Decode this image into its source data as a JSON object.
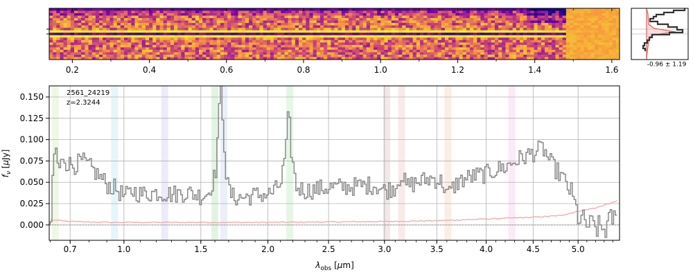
{
  "chart_data": [
    {
      "type": "heatmap",
      "name": "2d-spectrum",
      "xlabel": "",
      "ylabel": "",
      "colormap": "plasma",
      "xlim": [
        0.14,
        1.62
      ],
      "xticks_major": [
        0.2,
        0.4,
        0.6,
        0.8,
        1.0,
        1.2,
        1.4,
        1.6
      ],
      "xtick_labels": [
        "0.2",
        "0.4",
        "0.6",
        "0.8",
        "1.0",
        "1.2",
        "1.4",
        "1.6"
      ],
      "xticks_minor": [
        0.3,
        0.5,
        0.7,
        0.9,
        1.1,
        1.3,
        1.5
      ],
      "rows": 21,
      "trace_row": 10,
      "dark_region_end": 1.48
    },
    {
      "type": "line",
      "name": "spatial-profile",
      "annotation": "-0.96 ± 1.19",
      "series": [
        {
          "name": "data",
          "color": "#333333"
        },
        {
          "name": "model",
          "color": "#e06060"
        }
      ]
    },
    {
      "type": "line",
      "name": "1d-spectrum",
      "title": "",
      "label_id": "2561_24219",
      "label_z": "z=2.3244",
      "xlabel": "λobs [μm]",
      "ylabel": "fν [μJy]",
      "ylim": [
        -0.018,
        0.163
      ],
      "yticks": [
        0.0,
        0.025,
        0.05,
        0.075,
        0.1,
        0.125,
        0.15
      ],
      "ytick_labels": [
        "0.000",
        "0.025",
        "0.050",
        "0.075",
        "0.100",
        "0.125",
        "0.150"
      ],
      "xlim_um": [
        0.595,
        5.48
      ],
      "xticks_um": [
        0.7,
        1.0,
        1.5,
        2.0,
        2.5,
        3.0,
        3.5,
        4.0,
        4.5,
        5.0
      ],
      "xtick_labels": [
        "0.7",
        "1.0",
        "1.5",
        "2.0",
        "2.5",
        "3.0",
        "3.5",
        "4.0",
        "4.5",
        "5.0"
      ],
      "grid": true,
      "emission_bands": [
        {
          "um": 0.625,
          "color": "#b6d98a"
        },
        {
          "um": 0.945,
          "color": "#8fd3ee"
        },
        {
          "um": 1.255,
          "color": "#a9a6e8"
        },
        {
          "um": 1.6,
          "color": "#7cc87c"
        },
        {
          "um": 1.665,
          "color": "#9fb7e0"
        },
        {
          "um": 2.175,
          "color": "#8fd88f"
        },
        {
          "um": 3.02,
          "color": "#c99090"
        },
        {
          "um": 3.16,
          "color": "#e3a0a0"
        },
        {
          "um": 3.61,
          "color": "#f3b08a"
        },
        {
          "um": 4.27,
          "color": "#f0a0d8"
        }
      ],
      "series": [
        {
          "name": "flux",
          "color": "#888888",
          "anchors": [
            [
              0.6,
              0.0
            ],
            [
              0.61,
              0.07
            ],
            [
              0.625,
              0.09
            ],
            [
              0.64,
              0.06
            ],
            [
              0.66,
              0.082
            ],
            [
              0.68,
              0.072
            ],
            [
              0.72,
              0.07
            ],
            [
              0.76,
              0.075
            ],
            [
              0.8,
              0.068
            ],
            [
              0.85,
              0.058
            ],
            [
              0.9,
              0.047
            ],
            [
              0.95,
              0.042
            ],
            [
              1.0,
              0.033
            ],
            [
              1.05,
              0.04
            ],
            [
              1.1,
              0.036
            ],
            [
              1.2,
              0.038
            ],
            [
              1.3,
              0.036
            ],
            [
              1.4,
              0.038
            ],
            [
              1.5,
              0.034
            ],
            [
              1.55,
              0.038
            ],
            [
              1.6,
              0.06
            ],
            [
              1.62,
              0.12
            ],
            [
              1.64,
              0.16
            ],
            [
              1.655,
              0.12
            ],
            [
              1.68,
              0.05
            ],
            [
              1.72,
              0.033
            ],
            [
              1.8,
              0.032
            ],
            [
              1.9,
              0.035
            ],
            [
              2.0,
              0.036
            ],
            [
              2.05,
              0.04
            ],
            [
              2.1,
              0.05
            ],
            [
              2.14,
              0.09
            ],
            [
              2.16,
              0.135
            ],
            [
              2.18,
              0.09
            ],
            [
              2.22,
              0.045
            ],
            [
              2.3,
              0.04
            ],
            [
              2.5,
              0.044
            ],
            [
              2.7,
              0.045
            ],
            [
              2.9,
              0.047
            ],
            [
              3.0,
              0.04
            ],
            [
              3.1,
              0.045
            ],
            [
              3.15,
              0.06
            ],
            [
              3.2,
              0.045
            ],
            [
              3.3,
              0.05
            ],
            [
              3.45,
              0.055
            ],
            [
              3.55,
              0.05
            ],
            [
              3.6,
              0.035
            ],
            [
              3.7,
              0.05
            ],
            [
              3.8,
              0.055
            ],
            [
              3.9,
              0.058
            ],
            [
              4.0,
              0.06
            ],
            [
              4.1,
              0.065
            ],
            [
              4.2,
              0.068
            ],
            [
              4.3,
              0.075
            ],
            [
              4.4,
              0.08
            ],
            [
              4.5,
              0.085
            ],
            [
              4.6,
              0.09
            ],
            [
              4.7,
              0.07
            ],
            [
              4.8,
              0.058
            ],
            [
              4.9,
              0.04
            ],
            [
              4.95,
              0.025
            ],
            [
              5.0,
              0.008
            ],
            [
              5.1,
              0.0
            ],
            [
              5.2,
              -0.003
            ],
            [
              5.3,
              -0.005
            ],
            [
              5.4,
              0.01
            ],
            [
              5.45,
              0.0
            ]
          ]
        },
        {
          "name": "uncertainty",
          "color": "#f4a6a6",
          "anchors": [
            [
              0.6,
              0.006
            ],
            [
              0.7,
              0.004
            ],
            [
              0.9,
              0.003
            ],
            [
              1.5,
              0.003
            ],
            [
              2.0,
              0.003
            ],
            [
              3.0,
              0.004
            ],
            [
              3.5,
              0.005
            ],
            [
              4.0,
              0.007
            ],
            [
              4.5,
              0.009
            ],
            [
              4.8,
              0.011
            ],
            [
              5.0,
              0.016
            ],
            [
              5.2,
              0.02
            ],
            [
              5.45,
              0.028
            ]
          ]
        }
      ]
    }
  ]
}
